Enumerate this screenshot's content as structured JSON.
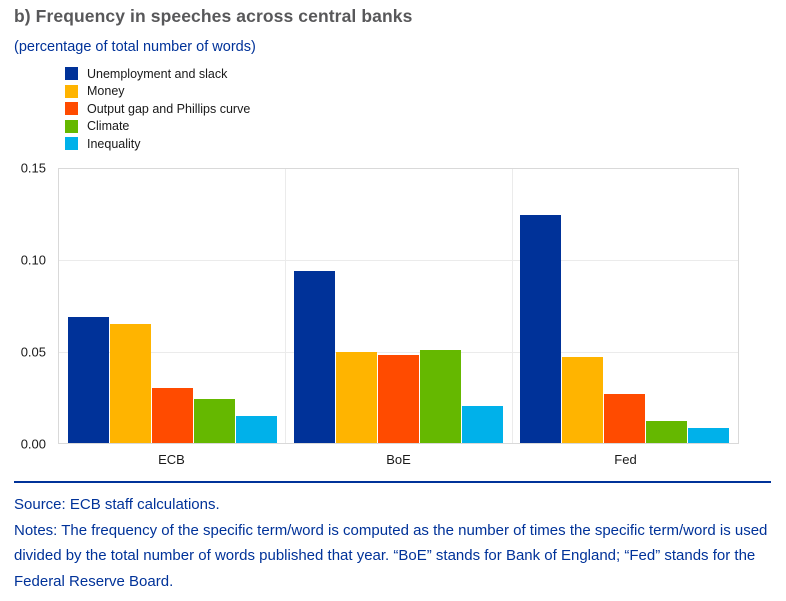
{
  "header": {
    "title": "b) Frequency in speeches across central banks",
    "subtitle": "(percentage of total number of words)"
  },
  "colors": {
    "accent_blue": "#003299",
    "title_gray": "#58585a",
    "grid_gray": "#ebebeb"
  },
  "chart_data": {
    "type": "bar",
    "title": "b) Frequency in speeches across central banks",
    "subtitle": "(percentage of total number of words)",
    "categories": [
      "ECB",
      "BoE",
      "Fed"
    ],
    "series": [
      {
        "name": "Unemployment and slack",
        "color": "#003299",
        "values": [
          0.069,
          0.094,
          0.125
        ]
      },
      {
        "name": "Money",
        "color": "#FFB400",
        "values": [
          0.065,
          0.05,
          0.047
        ]
      },
      {
        "name": "Output gap and Phillips curve",
        "color": "#FF4B00",
        "values": [
          0.03,
          0.048,
          0.027
        ]
      },
      {
        "name": "Climate",
        "color": "#65B800",
        "values": [
          0.024,
          0.051,
          0.012
        ]
      },
      {
        "name": "Inequality",
        "color": "#00B1EA",
        "values": [
          0.015,
          0.02,
          0.008
        ]
      }
    ],
    "xlabel": "",
    "ylabel": "",
    "ylim": [
      0,
      0.15
    ],
    "yticks": [
      "0.15",
      "0.10",
      "0.05",
      "0.00"
    ],
    "grid": true,
    "legend_position": "top-left"
  },
  "footer": {
    "source": "Source: ECB staff calculations.",
    "notes": "Notes: The frequency of the specific term/word is computed as the number of times the specific term/word is used divided by the total number of words published that year. “BoE” stands for Bank of England; “Fed” stands for the Federal Reserve Board."
  }
}
